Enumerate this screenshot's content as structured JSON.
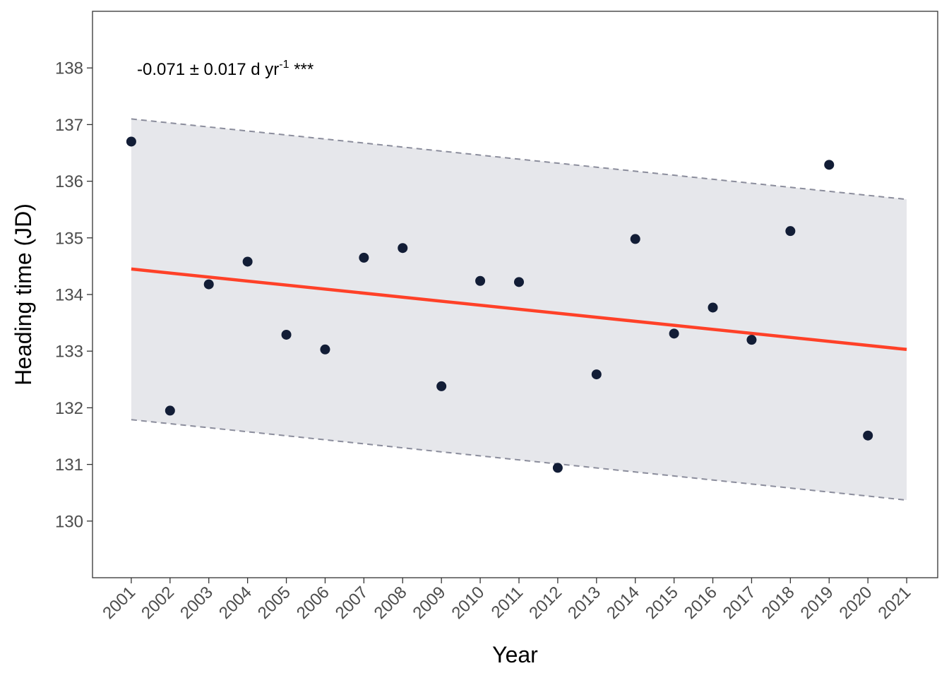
{
  "chart_data": {
    "type": "scatter",
    "xlabel": "Year",
    "ylabel": "Heading time (JD)",
    "annotation": {
      "main": "-0.071 ± 0.017 d yr",
      "sup": "-1",
      "suffix": " ***"
    },
    "x_ticks": [
      2001,
      2002,
      2003,
      2004,
      2005,
      2006,
      2007,
      2008,
      2009,
      2010,
      2011,
      2012,
      2013,
      2014,
      2015,
      2016,
      2017,
      2018,
      2019,
      2020,
      2021
    ],
    "y_ticks": [
      130,
      131,
      132,
      133,
      134,
      135,
      136,
      137,
      138
    ],
    "xlim": [
      2000.0,
      2021.8
    ],
    "ylim": [
      129.0,
      139.0
    ],
    "points": {
      "x": [
        2001,
        2002,
        2003,
        2004,
        2005,
        2006,
        2007,
        2008,
        2009,
        2010,
        2011,
        2012,
        2013,
        2014,
        2015,
        2016,
        2017,
        2018,
        2019,
        2020
      ],
      "y": [
        136.7,
        131.95,
        134.18,
        134.58,
        133.29,
        133.03,
        134.65,
        134.82,
        132.38,
        134.24,
        134.22,
        130.94,
        132.59,
        134.98,
        133.31,
        133.77,
        133.2,
        135.12,
        136.29,
        131.51
      ]
    },
    "trend_line": {
      "x": [
        2001,
        2021
      ],
      "y": [
        134.45,
        133.03
      ]
    },
    "band_upper": {
      "x": [
        2001,
        2021
      ],
      "y": [
        137.1,
        135.68
      ]
    },
    "band_lower": {
      "x": [
        2001,
        2021
      ],
      "y": [
        131.79,
        130.37
      ]
    },
    "colors": {
      "points": "#121d36",
      "trend": "#ff4128",
      "band_fill": "#e6e7eb",
      "band_border": "#8b8d9c",
      "axis": "#333333",
      "tick_text": "#4d4d4d"
    },
    "grid": false
  }
}
